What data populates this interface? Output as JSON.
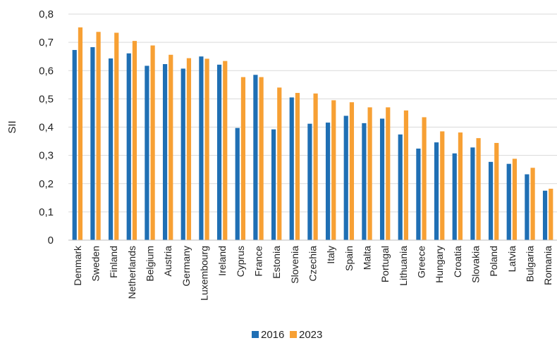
{
  "chart_data": {
    "type": "bar",
    "title": "",
    "xlabel": "",
    "ylabel": "SII",
    "ylim": [
      0,
      0.8
    ],
    "yticks": [
      "0",
      "0,1",
      "0,2",
      "0,3",
      "0,4",
      "0,5",
      "0,6",
      "0,7",
      "0,8"
    ],
    "grid": true,
    "legend_position": "bottom",
    "categories": [
      "Denmark",
      "Sweden",
      "Finland",
      "Netherlands",
      "Belgium",
      "Austria",
      "Germany",
      "Luxembourg",
      "Ireland",
      "Cyprus",
      "France",
      "Estonia",
      "Slovenia",
      "Czechia",
      "Italy",
      "Spain",
      "Malta",
      "Portugal",
      "Lithuania",
      "Greece",
      "Hungary",
      "Croatia",
      "Slovakia",
      "Poland",
      "Latvia",
      "Bulgaria",
      "Romania"
    ],
    "series": [
      {
        "name": "2016",
        "color": "#1f6fb4",
        "values": [
          0.673,
          0.683,
          0.643,
          0.661,
          0.617,
          0.623,
          0.607,
          0.65,
          0.621,
          0.397,
          0.585,
          0.392,
          0.505,
          0.412,
          0.416,
          0.44,
          0.414,
          0.43,
          0.374,
          0.324,
          0.346,
          0.307,
          0.328,
          0.277,
          0.27,
          0.233,
          0.175
        ]
      },
      {
        "name": "2023",
        "color": "#f7a034",
        "values": [
          0.753,
          0.737,
          0.734,
          0.705,
          0.689,
          0.656,
          0.644,
          0.642,
          0.634,
          0.577,
          0.577,
          0.54,
          0.521,
          0.519,
          0.495,
          0.488,
          0.47,
          0.47,
          0.459,
          0.435,
          0.385,
          0.381,
          0.361,
          0.344,
          0.288,
          0.256,
          0.182
        ]
      }
    ]
  }
}
